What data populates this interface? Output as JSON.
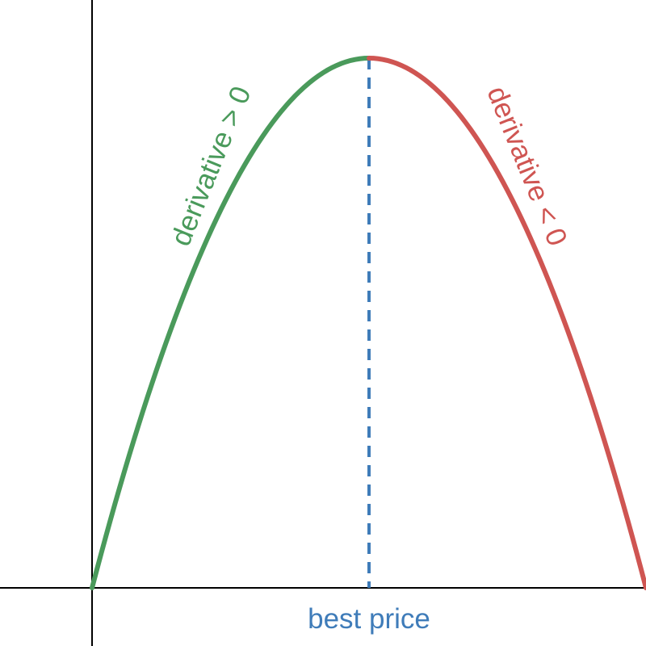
{
  "chart_data": {
    "type": "line",
    "title": "",
    "xlabel": "",
    "ylabel": "",
    "axes": {
      "x_axis_visible": true,
      "y_axis_visible": true,
      "ticks": false,
      "grid": false
    },
    "series": [
      {
        "x": [
          0,
          0.25,
          0.5,
          0.75,
          1.0
        ],
        "y": [
          0,
          0.4375,
          0.75,
          0.9375,
          1.0
        ],
        "color": "#4a9a5b"
      },
      {
        "x": [
          1.0,
          1.25,
          1.5,
          1.75,
          2.0
        ],
        "y": [
          1.0,
          0.9375,
          0.75,
          0.4375,
          0
        ],
        "color": "#cf5552"
      }
    ],
    "reference_lines": [
      {
        "orientation": "vertical",
        "x": 1.0,
        "style": "dashed",
        "color": "#3f7cb9",
        "label": "best price"
      }
    ],
    "annotations": [
      {
        "text": "derivative > 0",
        "color": "#4a9a5b"
      },
      {
        "text": "derivative < 0",
        "color": "#cf5552"
      }
    ]
  }
}
